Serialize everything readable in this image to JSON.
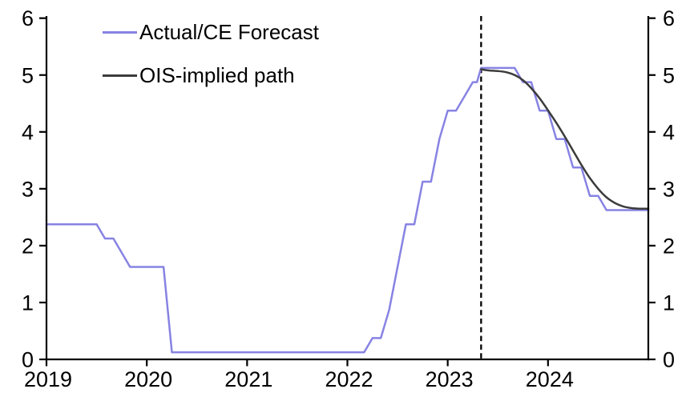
{
  "page": {
    "background_color": "#ffffff",
    "text_color": "#000000"
  },
  "chart_data": {
    "type": "line",
    "title": "",
    "xlabel": "",
    "ylabel": "",
    "grid": false,
    "legend_position": "top-left",
    "x_axis": {
      "range": [
        2019,
        2025
      ],
      "tick_positions": [
        2019,
        2020,
        2021,
        2022,
        2023,
        2024
      ],
      "tick_labels": [
        "2019",
        "2020",
        "2021",
        "2022",
        "2023",
        "2024"
      ]
    },
    "y_axis_left": {
      "range": [
        0,
        6
      ],
      "tick_positions": [
        0,
        1,
        2,
        3,
        4,
        5,
        6
      ],
      "tick_labels": [
        "0",
        "1",
        "2",
        "3",
        "4",
        "5",
        "6"
      ]
    },
    "y_axis_right": {
      "range": [
        0,
        6
      ],
      "tick_positions": [
        0,
        1,
        2,
        3,
        4,
        5,
        6
      ],
      "tick_labels": [
        "0",
        "1",
        "2",
        "3",
        "4",
        "5",
        "6"
      ]
    },
    "vline": {
      "x": 2023.333,
      "style": "dashed",
      "color": "#000000"
    },
    "series": [
      {
        "name": "Actual/CE Forecast",
        "color": "#8783E3",
        "smooth": false,
        "points": [
          [
            2019.0,
            2.375
          ],
          [
            2019.5,
            2.375
          ],
          [
            2019.583,
            2.125
          ],
          [
            2019.667,
            2.125
          ],
          [
            2019.75,
            1.875
          ],
          [
            2019.833,
            1.625
          ],
          [
            2020.167,
            1.625
          ],
          [
            2020.25,
            0.125
          ],
          [
            2022.167,
            0.125
          ],
          [
            2022.25,
            0.375
          ],
          [
            2022.333,
            0.375
          ],
          [
            2022.417,
            0.875
          ],
          [
            2022.5,
            1.625
          ],
          [
            2022.583,
            2.375
          ],
          [
            2022.667,
            2.375
          ],
          [
            2022.75,
            3.125
          ],
          [
            2022.833,
            3.125
          ],
          [
            2022.917,
            3.875
          ],
          [
            2023.0,
            4.375
          ],
          [
            2023.083,
            4.375
          ],
          [
            2023.167,
            4.625
          ],
          [
            2023.25,
            4.875
          ],
          [
            2023.292,
            4.875
          ],
          [
            2023.333,
            5.125
          ],
          [
            2023.667,
            5.125
          ],
          [
            2023.75,
            4.875
          ],
          [
            2023.833,
            4.875
          ],
          [
            2023.917,
            4.375
          ],
          [
            2024.0,
            4.375
          ],
          [
            2024.083,
            3.875
          ],
          [
            2024.167,
            3.875
          ],
          [
            2024.25,
            3.375
          ],
          [
            2024.333,
            3.375
          ],
          [
            2024.417,
            2.875
          ],
          [
            2024.5,
            2.875
          ],
          [
            2024.583,
            2.625
          ],
          [
            2025.0,
            2.625
          ]
        ]
      },
      {
        "name": "OIS-implied path",
        "color": "#3C3C3C",
        "smooth": true,
        "points": [
          [
            2023.333,
            5.1
          ],
          [
            2023.417,
            5.08
          ],
          [
            2023.5,
            5.07
          ],
          [
            2023.583,
            5.05
          ],
          [
            2023.667,
            5.0
          ],
          [
            2023.75,
            4.91
          ],
          [
            2023.833,
            4.77
          ],
          [
            2023.917,
            4.59
          ],
          [
            2024.0,
            4.38
          ],
          [
            2024.083,
            4.16
          ],
          [
            2024.167,
            3.92
          ],
          [
            2024.25,
            3.67
          ],
          [
            2024.333,
            3.42
          ],
          [
            2024.417,
            3.19
          ],
          [
            2024.5,
            3.0
          ],
          [
            2024.583,
            2.85
          ],
          [
            2024.667,
            2.75
          ],
          [
            2024.75,
            2.69
          ],
          [
            2024.833,
            2.66
          ],
          [
            2024.917,
            2.65
          ],
          [
            2025.0,
            2.65
          ]
        ]
      }
    ]
  }
}
